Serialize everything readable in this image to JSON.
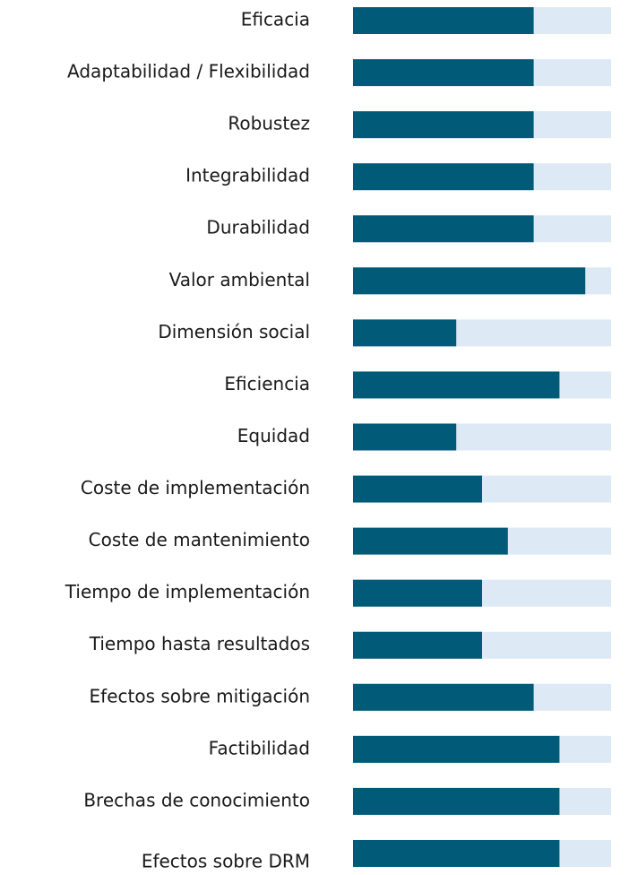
{
  "chart_data": {
    "type": "bar",
    "orientation": "horizontal",
    "categories": [
      "Eficacia",
      "Adaptabilidad / Flexibilidad",
      "Robustez",
      "Integrabilidad",
      "Durabilidad",
      "Valor ambiental",
      "Dimensión social",
      "Eficiencia",
      "Equidad",
      "Coste de implementación",
      "Coste de mantenimiento",
      "Tiempo de implementación",
      "Tiempo hasta resultados",
      "Efectos sobre mitigación",
      "Factibilidad",
      "Brechas de conocimiento",
      "Efectos sobre DRM"
    ],
    "values": [
      7,
      7,
      7,
      7,
      7,
      9,
      4,
      8,
      4,
      5,
      6,
      5,
      5,
      7,
      8,
      8,
      8
    ],
    "color": "#005a78",
    "track_color": "#dde9f5",
    "xlim": [
      0,
      10
    ]
  }
}
